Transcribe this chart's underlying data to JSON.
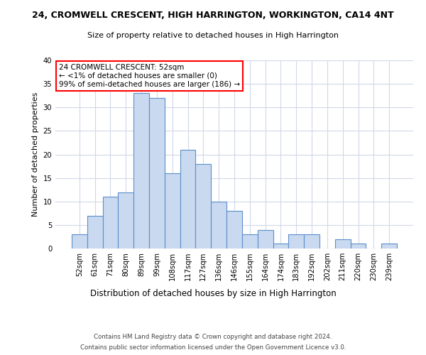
{
  "title": "24, CROMWELL CRESCENT, HIGH HARRINGTON, WORKINGTON, CA14 4NT",
  "subtitle": "Size of property relative to detached houses in High Harrington",
  "xlabel": "Distribution of detached houses by size in High Harrington",
  "ylabel": "Number of detached properties",
  "categories": [
    "52sqm",
    "61sqm",
    "71sqm",
    "80sqm",
    "89sqm",
    "99sqm",
    "108sqm",
    "117sqm",
    "127sqm",
    "136sqm",
    "146sqm",
    "155sqm",
    "164sqm",
    "174sqm",
    "183sqm",
    "192sqm",
    "202sqm",
    "211sqm",
    "220sqm",
    "230sqm",
    "239sqm"
  ],
  "values": [
    3,
    7,
    11,
    12,
    33,
    32,
    16,
    21,
    18,
    10,
    8,
    3,
    4,
    1,
    3,
    3,
    0,
    2,
    1,
    0,
    1
  ],
  "bar_color": "#c9d9f0",
  "bar_edge_color": "#5b8fc9",
  "annotation_text": "24 CROMWELL CRESCENT: 52sqm\n← <1% of detached houses are smaller (0)\n99% of semi-detached houses are larger (186) →",
  "annotation_box_color": "white",
  "annotation_box_edge_color": "red",
  "ylim": [
    0,
    40
  ],
  "yticks": [
    0,
    5,
    10,
    15,
    20,
    25,
    30,
    35,
    40
  ],
  "grid_color": "#d0d8e8",
  "background_color": "white",
  "footer1": "Contains HM Land Registry data © Crown copyright and database right 2024.",
  "footer2": "Contains public sector information licensed under the Open Government Licence v3.0."
}
